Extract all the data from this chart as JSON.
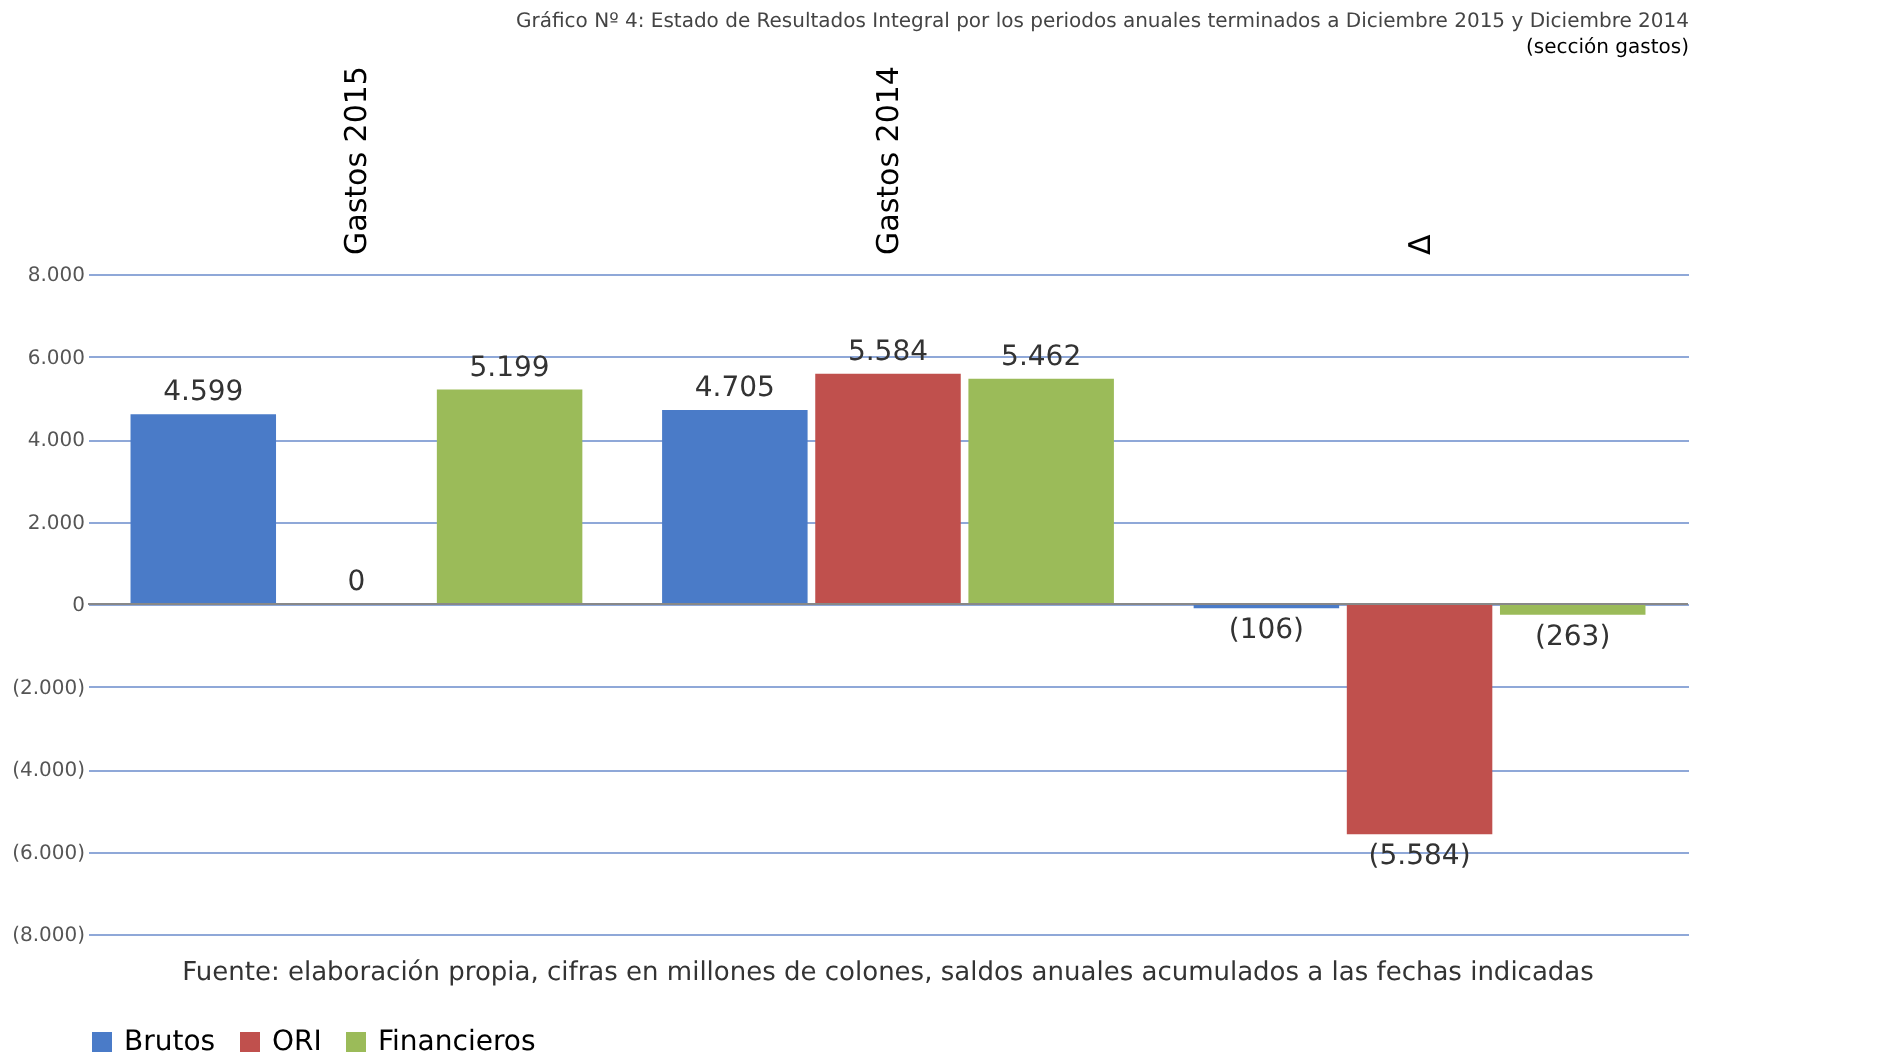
{
  "chart_data": {
    "type": "bar",
    "title": "Gráfico Nº 4: Estado de Resultados Integral por los periodos anuales terminados a Diciembre 2015 y Diciembre 2014",
    "subtitle": "(sección gastos)",
    "categories": [
      "Gastos 2015",
      "Gastos 2014",
      "Δ"
    ],
    "series": [
      {
        "name": "Brutos",
        "color": "#4a7bc8",
        "values": [
          4599,
          4705,
          -106
        ],
        "value_labels": [
          "4.599",
          "4.705",
          "(106)"
        ]
      },
      {
        "name": "ORI",
        "color": "#c0504d",
        "values": [
          0,
          5584,
          -5584
        ],
        "value_labels": [
          "0",
          "5.584",
          "(5.584)"
        ]
      },
      {
        "name": "Financieros",
        "color": "#9bbb59",
        "values": [
          5199,
          5462,
          -263
        ],
        "value_labels": [
          "5.199",
          "5.462",
          "(263)"
        ]
      }
    ],
    "ylim": [
      -8000,
      8000
    ],
    "yticks": [
      {
        "value": 8000,
        "label": "8.000"
      },
      {
        "value": 6000,
        "label": "6.000"
      },
      {
        "value": 4000,
        "label": "4.000"
      },
      {
        "value": 2000,
        "label": "2.000"
      },
      0,
      {
        "value": -2000,
        "label": "(2.000)"
      },
      {
        "value": -4000,
        "label": "(4.000)"
      },
      {
        "value": -6000,
        "label": "(6.000)"
      },
      {
        "value": -8000,
        "label": "(8.000)"
      }
    ],
    "grid": "y",
    "legend": "bottom",
    "annotations": [
      "Fuente: elaboración propia, cifras en millones de colones, saldos anuales acumulados a las fechas indicadas"
    ]
  }
}
